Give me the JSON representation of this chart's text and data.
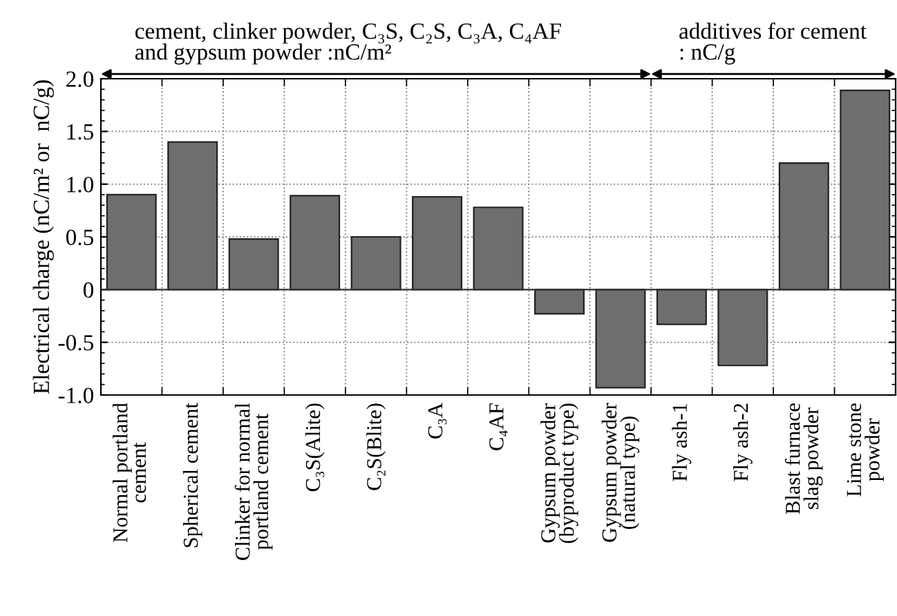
{
  "chart_data": {
    "type": "bar",
    "ylabel": "Electrical charge (nC/m² or  nC/g)",
    "annotations": [
      "cement, clinker powder, C₃S, C₂S, C₃A, C₄AF\nand gypsum powder :nC/m²",
      "additives for cement\n: nC/g"
    ],
    "categories": [
      "Normal portland\ncement",
      "Spherical cement",
      "Clinker for normal\nportland cement",
      "C₃S(Alite)",
      "C₂S(Blite)",
      "C₃A",
      "C₄AF",
      "Gypsum powder\n(byproduct type)",
      "Gypsum powder\n(natural type)",
      "Fly ash-1",
      "Fly ash-2",
      "Blast furnace\nslag powder",
      "Lime stone\npowder"
    ],
    "values": [
      0.9,
      1.4,
      0.48,
      0.89,
      0.5,
      0.88,
      0.78,
      -0.23,
      -0.93,
      -0.33,
      -0.72,
      1.2,
      1.89
    ],
    "color": "#6e6e6e",
    "ylim": [
      -1.0,
      2.0
    ],
    "yticks": [
      {
        "value": -1.0,
        "label": "-1.0"
      },
      {
        "value": -0.5,
        "label": "-0.5"
      },
      0,
      {
        "value": 0.5,
        "label": "0.5"
      },
      {
        "value": 1.0,
        "label": "1.0"
      },
      {
        "value": 1.5,
        "label": "1.5"
      },
      {
        "value": 2.0,
        "label": "2.0"
      }
    ],
    "grid": true
  }
}
